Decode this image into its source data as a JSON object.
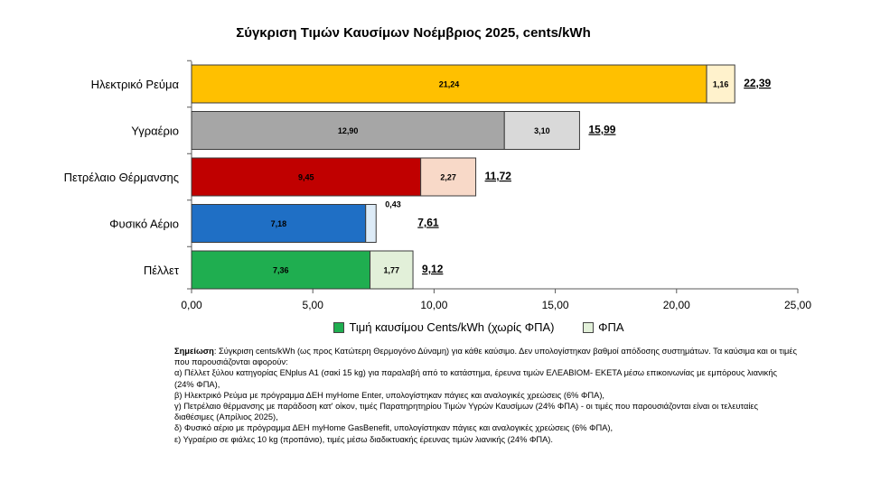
{
  "chart_data": {
    "type": "bar",
    "orientation": "horizontal",
    "stacked": true,
    "title": "Σύγκριση Τιμών Καυσίμων Νοέμβριος 2025, cents/kWh",
    "categories": [
      "Ηλεκτρικό Ρεύμα",
      "Υγραέριο",
      "Πετρέλαιο Θέρμανσης",
      "Φυσικό Αέριο",
      "Πέλλετ"
    ],
    "series": [
      {
        "name": "Τιμή καυσίμου Cents/kWh (χωρίς ΦΠΑ)",
        "values": [
          21.24,
          12.9,
          9.45,
          7.18,
          7.36
        ],
        "labels": [
          "21,24",
          "12,90",
          "9,45",
          "7,18",
          "7,36"
        ],
        "colors": [
          "#FFC000",
          "#A6A6A6",
          "#C00000",
          "#1F6FC5",
          "#1FAE50"
        ]
      },
      {
        "name": "ΦΠΑ",
        "values": [
          1.16,
          3.1,
          2.27,
          0.43,
          1.77
        ],
        "labels": [
          "1,16",
          "3,10",
          "2,27",
          "0,43",
          "1,77"
        ],
        "colors": [
          "#FFF2CC",
          "#D9D9D9",
          "#F8D9C8",
          "#DDEBF7",
          "#E2F0D9"
        ]
      }
    ],
    "totals": [
      22.39,
      15.99,
      11.72,
      7.61,
      9.12
    ],
    "total_labels": [
      "22,39",
      "15,99",
      "11,72",
      "7,61",
      "9,12"
    ],
    "xlim": [
      0,
      25
    ],
    "xticks": [
      0,
      5,
      10,
      15,
      20,
      25
    ],
    "xtick_labels": [
      "0,00",
      "5,00",
      "10,00",
      "15,00",
      "20,00",
      "25,00"
    ],
    "grid": false,
    "legend_position": "bottom",
    "legend": [
      {
        "label": "Τιμή καυσίμου Cents/kWh (χωρίς ΦΠΑ)",
        "color": "#1FAE50"
      },
      {
        "label": "ΦΠΑ",
        "color": "#E2F0D9"
      }
    ]
  },
  "note": {
    "lead": "Σημείωση",
    "intro": ": Σύγκριση cents/kWh (ως προς Κατώτερη Θερμογόνο Δύναμη) για κάθε καύσιμο. Δεν υπολογίστηκαν βαθμοί απόδοσης συστημάτων. Τα καύσιμα και οι τιμές που παρουσιάζονται αφορούν:",
    "items": [
      "α) Πέλλετ ξύλου κατηγορίας ENplus A1 (σακί 15 kg) για παραλαβή από το κατάστημα, έρευνα τιμών ΕΛΕΑΒΙΟΜ- ΕΚΕΤΑ μέσω  επικοινωνίας με εμπόρους λιανικής (24% ΦΠΑ),",
      "β) Ηλεκτρικό Ρεύμα με πρόγραμμα ΔΕΗ myHome Enter, υπολογίστηκαν πάγιες και αναλογικές χρεώσεις (6% ΦΠΑ),",
      "γ) Πετρέλαιο θέρμανσης με παράδοση κατ' οίκον, τιμές Παρατηρητηρίου Τιμών Υγρών Καυσίμων (24% ΦΠΑ) - οι τιμές που παρουσιάζονται είναι οι τελευταίες διαθέσιμες (Απρίλιος 2025),",
      "δ) Φυσικό αέριο με πρόγραμμα ΔΕΗ myHome GasBenefit, υπολογίστηκαν πάγιες και αναλογικές χρεώσεις (6% ΦΠΑ),",
      "ε) Υγραέριο σε φιάλες 10 kg (προπάνιο), τιμές μέσω διαδικτυακής έρευνας τιμών λιανικής (24% ΦΠΑ)."
    ]
  }
}
